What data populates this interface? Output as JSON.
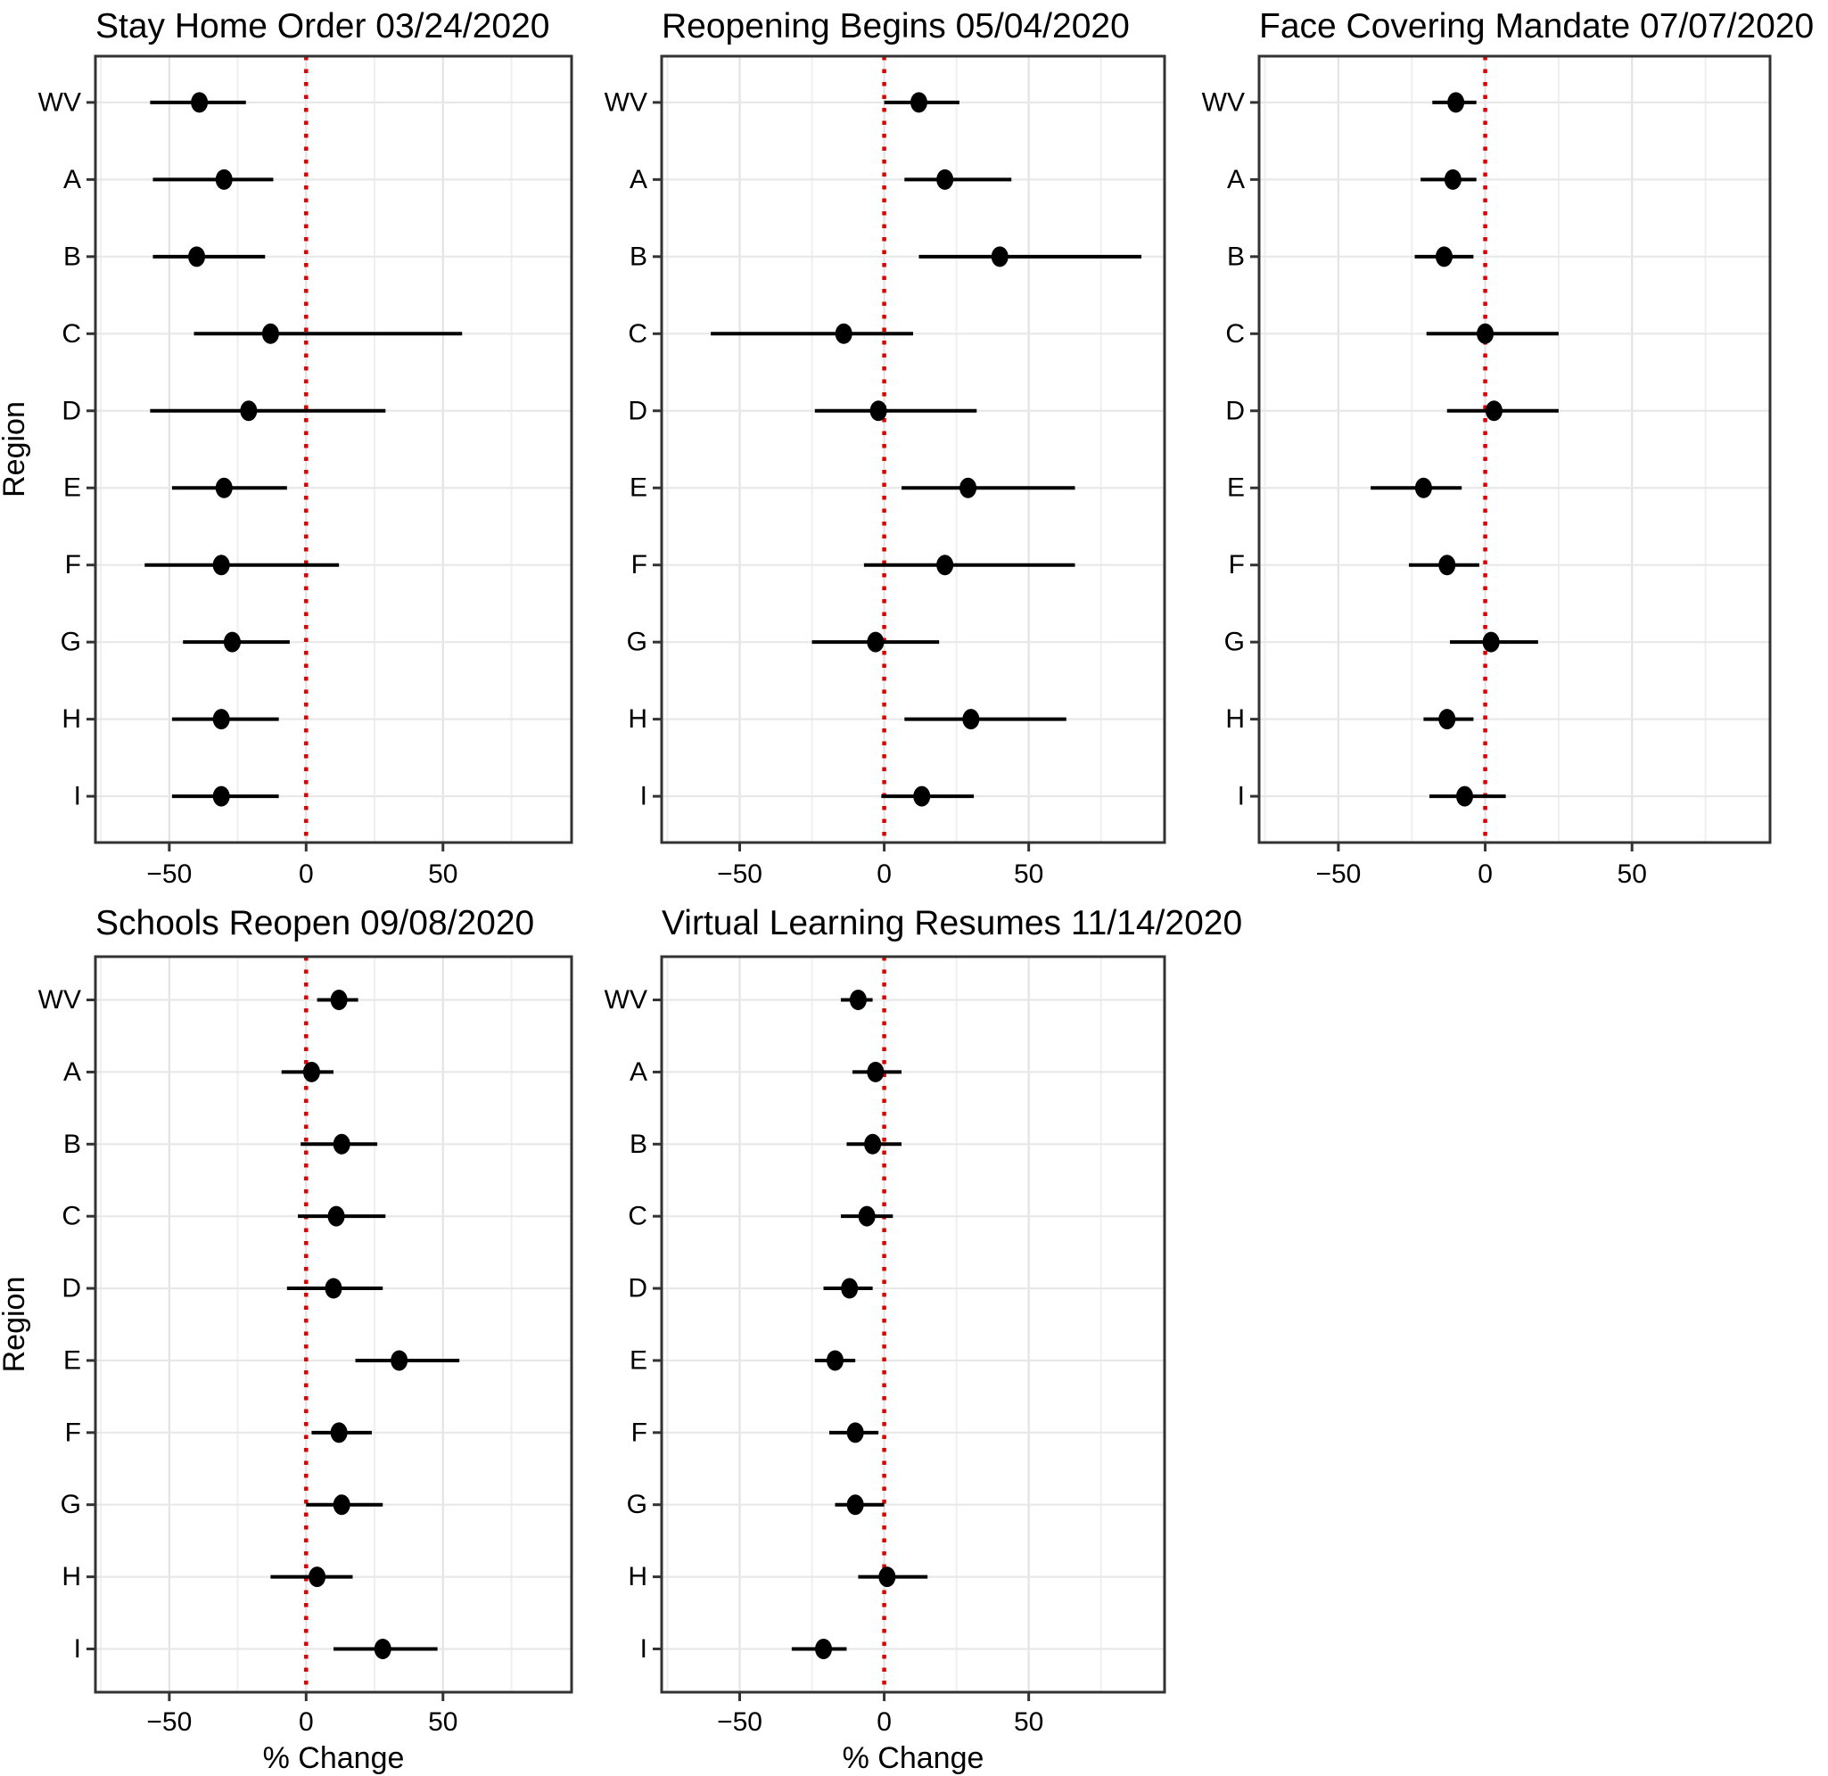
{
  "figure": {
    "y_axis_title": "Region",
    "x_axis_title": "% Change",
    "regions": [
      "WV",
      "A",
      "B",
      "C",
      "D",
      "E",
      "F",
      "G",
      "H",
      "I"
    ],
    "x_tick_labels": [
      "-50",
      "0",
      "50"
    ],
    "colors": {
      "reference_line": "#dd0000",
      "point": "#000000",
      "error_bar": "#000000",
      "grid_major": "#e3e3e3",
      "grid_minor": "#efefef",
      "category_grid": "#e8e8e8",
      "panel_border": "#333333",
      "background": "#ffffff",
      "text": "#000000"
    }
  },
  "chart_data": [
    {
      "type": "scatter",
      "subtype": "forest-dot-whisker",
      "title": "Stay Home Order 03/24/2020",
      "xlabel": "% Change",
      "ylabel": "Region",
      "xlim": [
        -77,
        97
      ],
      "x_major_ticks": [
        -50,
        0,
        50
      ],
      "x_minor_ticks": [
        -75,
        -25,
        25,
        75
      ],
      "reference_line_x": 0,
      "grid": true,
      "legend": "none",
      "categories": [
        "WV",
        "A",
        "B",
        "C",
        "D",
        "E",
        "F",
        "G",
        "H",
        "I"
      ],
      "estimates": [
        -39,
        -30,
        -40,
        -13,
        -21,
        -30,
        -31,
        -27,
        -31,
        -31
      ],
      "ci_low": [
        -57,
        -56,
        -56,
        -41,
        -57,
        -49,
        -59,
        -45,
        -49,
        -49
      ],
      "ci_high": [
        -22,
        -12,
        -15,
        57,
        29,
        -7,
        12,
        -6,
        -10,
        -10
      ]
    },
    {
      "type": "scatter",
      "subtype": "forest-dot-whisker",
      "title": "Reopening Begins 05/04/2020",
      "xlabel": "% Change",
      "ylabel": "Region",
      "xlim": [
        -77,
        97
      ],
      "x_major_ticks": [
        -50,
        0,
        50
      ],
      "x_minor_ticks": [
        -75,
        -25,
        25,
        75
      ],
      "reference_line_x": 0,
      "grid": true,
      "legend": "none",
      "categories": [
        "WV",
        "A",
        "B",
        "C",
        "D",
        "E",
        "F",
        "G",
        "H",
        "I"
      ],
      "estimates": [
        12,
        21,
        40,
        -14,
        -2,
        29,
        21,
        -3,
        30,
        13
      ],
      "ci_low": [
        0,
        7,
        12,
        -60,
        -24,
        6,
        -7,
        -25,
        7,
        -1
      ],
      "ci_high": [
        26,
        44,
        89,
        10,
        32,
        66,
        66,
        19,
        63,
        31
      ]
    },
    {
      "type": "scatter",
      "subtype": "forest-dot-whisker",
      "title": "Face Covering Mandate 07/07/2020",
      "xlabel": "% Change",
      "ylabel": "Region",
      "xlim": [
        -77,
        97
      ],
      "x_major_ticks": [
        -50,
        0,
        50
      ],
      "x_minor_ticks": [
        -75,
        -25,
        25,
        75
      ],
      "reference_line_x": 0,
      "grid": true,
      "legend": "none",
      "categories": [
        "WV",
        "A",
        "B",
        "C",
        "D",
        "E",
        "F",
        "G",
        "H",
        "I"
      ],
      "estimates": [
        -10,
        -11,
        -14,
        0,
        3,
        -21,
        -13,
        2,
        -13,
        -7
      ],
      "ci_low": [
        -18,
        -22,
        -24,
        -20,
        -13,
        -39,
        -26,
        -12,
        -21,
        -19
      ],
      "ci_high": [
        -3,
        -3,
        -4,
        25,
        25,
        -8,
        -2,
        18,
        -4,
        7
      ]
    },
    {
      "type": "scatter",
      "subtype": "forest-dot-whisker",
      "title": "Schools Reopen 09/08/2020",
      "xlabel": "% Change",
      "ylabel": "Region",
      "xlim": [
        -77,
        97
      ],
      "x_major_ticks": [
        -50,
        0,
        50
      ],
      "x_minor_ticks": [
        -75,
        -25,
        25,
        75
      ],
      "reference_line_x": 0,
      "grid": true,
      "legend": "none",
      "categories": [
        "WV",
        "A",
        "B",
        "C",
        "D",
        "E",
        "F",
        "G",
        "H",
        "I"
      ],
      "estimates": [
        12,
        2,
        13,
        11,
        10,
        34,
        12,
        13,
        4,
        28
      ],
      "ci_low": [
        4,
        -9,
        -2,
        -3,
        -7,
        18,
        2,
        0,
        -13,
        10
      ],
      "ci_high": [
        19,
        10,
        26,
        29,
        28,
        56,
        24,
        28,
        17,
        48
      ]
    },
    {
      "type": "scatter",
      "subtype": "forest-dot-whisker",
      "title": "Virtual Learning Resumes 11/14/2020",
      "xlabel": "% Change",
      "ylabel": "Region",
      "xlim": [
        -77,
        97
      ],
      "x_major_ticks": [
        -50,
        0,
        50
      ],
      "x_minor_ticks": [
        -75,
        -25,
        25,
        75
      ],
      "reference_line_x": 0,
      "grid": true,
      "legend": "none",
      "categories": [
        "WV",
        "A",
        "B",
        "C",
        "D",
        "E",
        "F",
        "G",
        "H",
        "I"
      ],
      "estimates": [
        -9,
        -3,
        -4,
        -6,
        -12,
        -17,
        -10,
        -10,
        1,
        -21
      ],
      "ci_low": [
        -15,
        -11,
        -13,
        -15,
        -21,
        -24,
        -19,
        -17,
        -9,
        -32
      ],
      "ci_high": [
        -4,
        6,
        6,
        3,
        -4,
        -10,
        -2,
        0,
        15,
        -13
      ]
    }
  ]
}
